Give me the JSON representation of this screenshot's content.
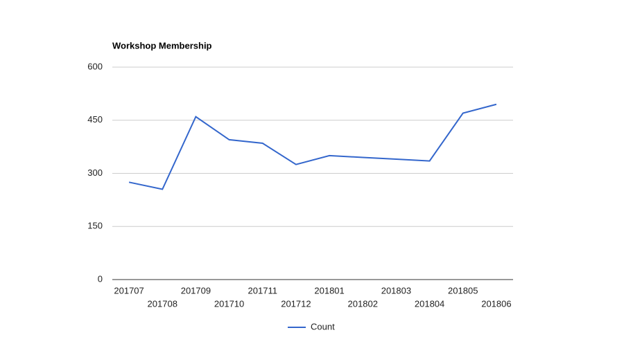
{
  "chart_data": {
    "type": "line",
    "title": "Workshop Membership",
    "categories": [
      "201707",
      "201708",
      "201709",
      "201710",
      "201711",
      "201712",
      "201801",
      "201802",
      "201803",
      "201804",
      "201805",
      "201806"
    ],
    "series": [
      {
        "name": "Count",
        "color": "#3366cc",
        "values": [
          275,
          255,
          460,
          395,
          385,
          325,
          350,
          345,
          340,
          335,
          470,
          495
        ]
      }
    ],
    "ylim": [
      0,
      600
    ],
    "yticks": [
      0,
      150,
      300,
      450,
      600
    ],
    "grid": true,
    "legend": "bottom"
  }
}
